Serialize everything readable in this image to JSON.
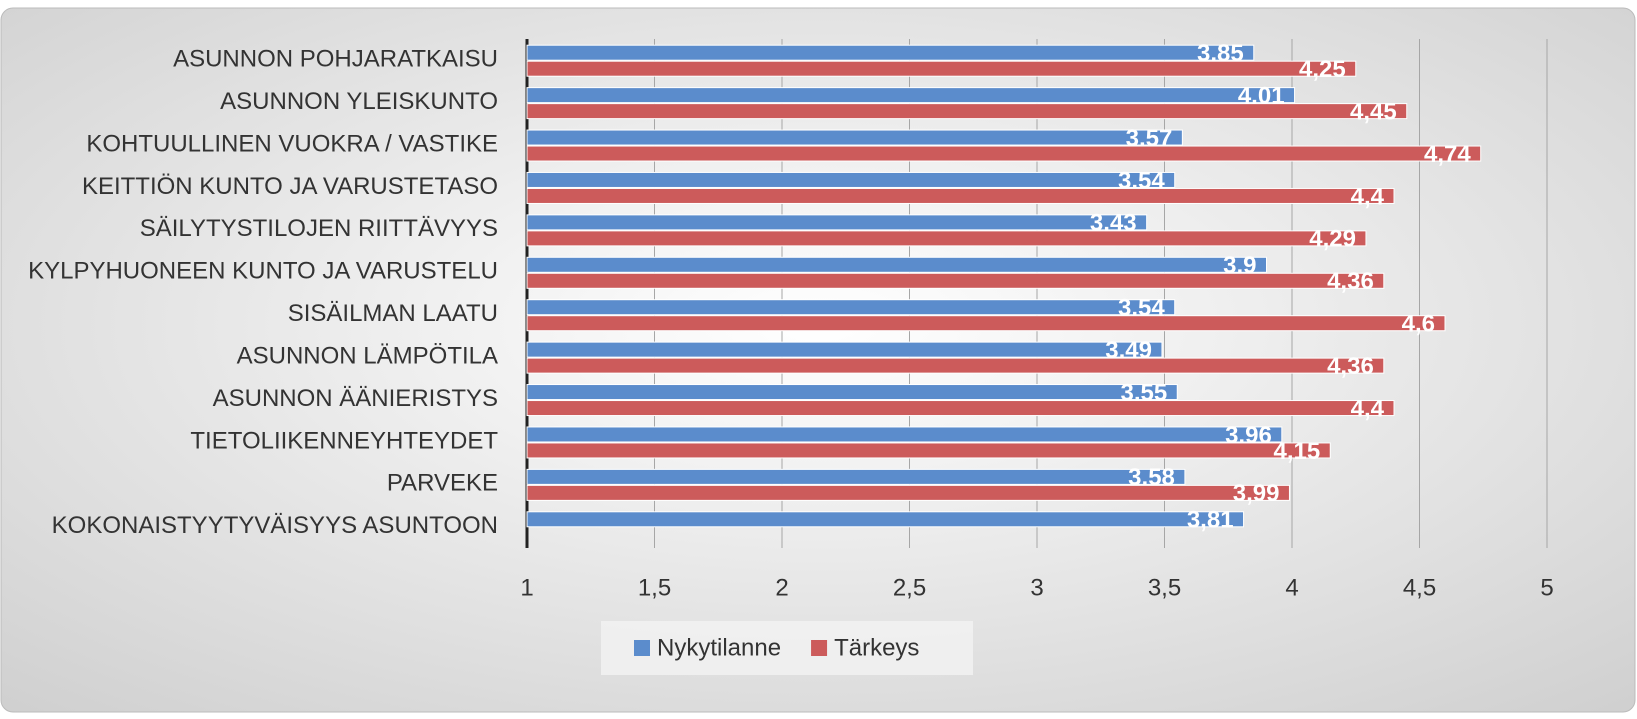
{
  "chart_data": {
    "type": "barh",
    "categories": [
      "ASUNNON POHJARATKAISU",
      "ASUNNON YLEISKUNTO",
      "KOHTUULLINEN VUOKRA / VASTIKE",
      "KEITTIÖN KUNTO JA VARUSTETASO",
      "SÄILYTYSTILOJEN RIITTÄVYYS",
      "KYLPYHUONEEN KUNTO JA VARUSTELU",
      "SISÄILMAN LAATU",
      "ASUNNON LÄMPÖTILA",
      "ASUNNON ÄÄNIERISTYS",
      "TIETOLIIKENNEYHTEYDET",
      "PARVEKE",
      "KOKONAISTYYTYVÄISYYS ASUNTOON"
    ],
    "series": [
      {
        "name": "Nykytilanne",
        "color": "#5b8ccc",
        "values": [
          3.85,
          4.01,
          3.57,
          3.54,
          3.43,
          3.9,
          3.54,
          3.49,
          3.55,
          3.96,
          3.58,
          3.81
        ],
        "value_labels": [
          "3,85",
          "4,01",
          "3,57",
          "3,54",
          "3,43",
          "3,9",
          "3,54",
          "3,49",
          "3,55",
          "3,96",
          "3,58",
          "3,81"
        ]
      },
      {
        "name": "Tärkeys",
        "color": "#cc5b5b",
        "values": [
          4.25,
          4.45,
          4.74,
          4.4,
          4.29,
          4.36,
          4.6,
          4.36,
          4.4,
          4.15,
          3.99,
          null
        ],
        "value_labels": [
          "4,25",
          "4,45",
          "4,74",
          "4,4",
          "4,29",
          "4,36",
          "4,6",
          "4,36",
          "4,4",
          "4,15",
          "3,99",
          null
        ]
      }
    ],
    "xlim": [
      1,
      5
    ],
    "xticks": [
      1,
      {
        "value": 1.5,
        "label": "1,5"
      },
      2,
      {
        "value": 2.5,
        "label": "2,5"
      },
      3,
      {
        "value": 3.5,
        "label": "3,5"
      },
      4,
      {
        "value": 4.5,
        "label": "4,5"
      },
      5
    ],
    "grid": true,
    "legend": "bottom"
  }
}
